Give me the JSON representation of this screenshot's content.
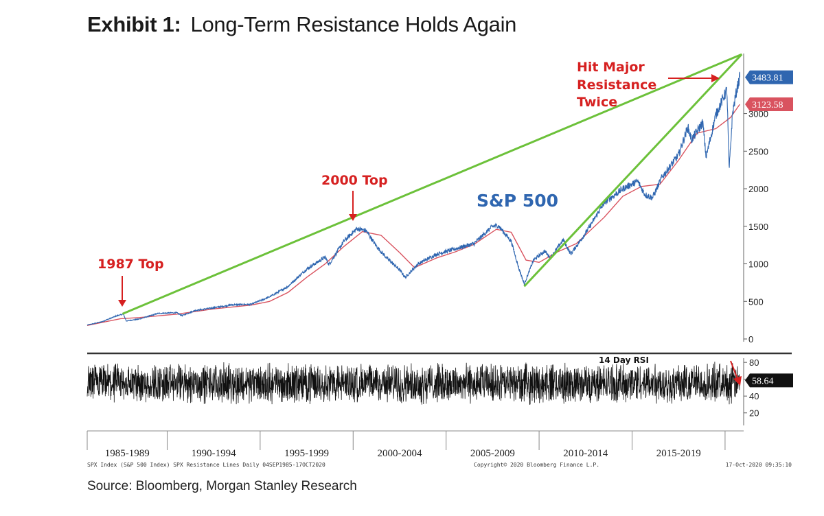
{
  "title": {
    "label": "Exhibit 1:",
    "text": "Long-Term Resistance Holds Again"
  },
  "source": "Source: Bloomberg, Morgan Stanley Research",
  "colors": {
    "price": "#2f66b0",
    "ma": "#d9535f",
    "resistance": "#6cc13a",
    "annotation": "#d62020",
    "rsi": "#111111"
  },
  "footer": {
    "left": "SPX Index (S&P 500 Index) SPX Resistance Lines  Daily 04SEP1985-17OCT2020",
    "center": "Copyright© 2020 Bloomberg Finance L.P.",
    "right": "17-Oct-2020 09:35:10"
  },
  "chart_data": [
    {
      "type": "line",
      "series_label": "S&P 500",
      "x_range": [
        1985.7,
        2021.0
      ],
      "ylim": [
        0,
        3800
      ],
      "yticks": [
        0,
        500,
        1000,
        1500,
        2000,
        2500,
        3000
      ],
      "x_tick_labels": [
        "1985-1989",
        "1990-1994",
        "1995-1999",
        "2000-2004",
        "2005-2009",
        "2010-2014",
        "2015-2019"
      ],
      "x_tick_positions": [
        1985.7,
        1990,
        1995,
        2000,
        2005,
        2010,
        2015,
        2020
      ],
      "last_values": [
        {
          "label": "3483.81",
          "value": 3483.81,
          "series": "price"
        },
        {
          "label": "3123.58",
          "value": 3123.58,
          "series": "ma"
        }
      ],
      "price": {
        "x": [
          1985.7,
          1986.5,
          1987.3,
          1987.65,
          1987.8,
          1988.5,
          1989.5,
          1990.5,
          1990.8,
          1991.5,
          1992.5,
          1993.5,
          1994.5,
          1995.5,
          1996.5,
          1997.5,
          1998.5,
          1998.7,
          1999.5,
          2000.2,
          2000.7,
          2001.3,
          2001.8,
          2002.5,
          2002.8,
          2003.5,
          2004.5,
          2005.5,
          2006.5,
          2007.5,
          2007.8,
          2008.5,
          2008.9,
          2009.2,
          2009.7,
          2010.3,
          2010.6,
          2011.3,
          2011.7,
          2012.5,
          2013.5,
          2014.5,
          2015.3,
          2015.7,
          2016.1,
          2016.6,
          2017.5,
          2018.0,
          2018.2,
          2018.8,
          2018.98,
          2019.5,
          2020.1,
          2020.22,
          2020.4,
          2020.6,
          2020.79
        ],
        "y": [
          185,
          230,
          310,
          330,
          240,
          265,
          340,
          350,
          310,
          380,
          415,
          455,
          460,
          560,
          700,
          930,
          1090,
          990,
          1300,
          1470,
          1440,
          1220,
          1080,
          920,
          820,
          1000,
          1130,
          1200,
          1270,
          1500,
          1510,
          1300,
          950,
          730,
          1050,
          1170,
          1080,
          1320,
          1130,
          1410,
          1810,
          2000,
          2100,
          1920,
          1880,
          2150,
          2450,
          2820,
          2650,
          2880,
          2420,
          2980,
          3320,
          2250,
          3000,
          3280,
          3483.81
        ]
      },
      "moving_average": {
        "x": [
          1985.7,
          1987.5,
          1988.5,
          1990.5,
          1992.5,
          1994.5,
          1995.5,
          1996.5,
          1997.5,
          1998.5,
          1999.5,
          2000.5,
          2001.5,
          2002.5,
          2003.3,
          2004.5,
          2005.5,
          2006.5,
          2007.7,
          2008.5,
          2009.3,
          2010.0,
          2011.0,
          2012.0,
          2013.5,
          2014.5,
          2015.5,
          2016.5,
          2017.5,
          2018.5,
          2019.5,
          2020.3,
          2020.79
        ],
        "y": [
          180,
          270,
          285,
          330,
          400,
          450,
          500,
          620,
          820,
          1000,
          1230,
          1430,
          1380,
          1150,
          950,
          1080,
          1160,
          1260,
          1460,
          1420,
          1050,
          1020,
          1160,
          1270,
          1620,
          1900,
          2030,
          2060,
          2380,
          2740,
          2800,
          2950,
          3123.58
        ]
      },
      "resistance_lines": [
        {
          "x": [
            1987.6,
            2020.9
          ],
          "y": [
            335,
            3790
          ]
        },
        {
          "x": [
            2009.2,
            2020.9
          ],
          "y": [
            700,
            3790
          ]
        }
      ],
      "annotations": [
        "1987 Top",
        "2000 Top",
        "Hit Major",
        "Resistance",
        "Twice",
        "S&P 500"
      ]
    },
    {
      "type": "line",
      "series_label": "14 Day RSI",
      "ylim": [
        10,
        85
      ],
      "yticks": [
        20,
        40,
        60,
        80
      ],
      "oscillation_range": [
        28,
        78
      ],
      "last_value": {
        "label": "58.64",
        "value": 58.64
      }
    }
  ]
}
